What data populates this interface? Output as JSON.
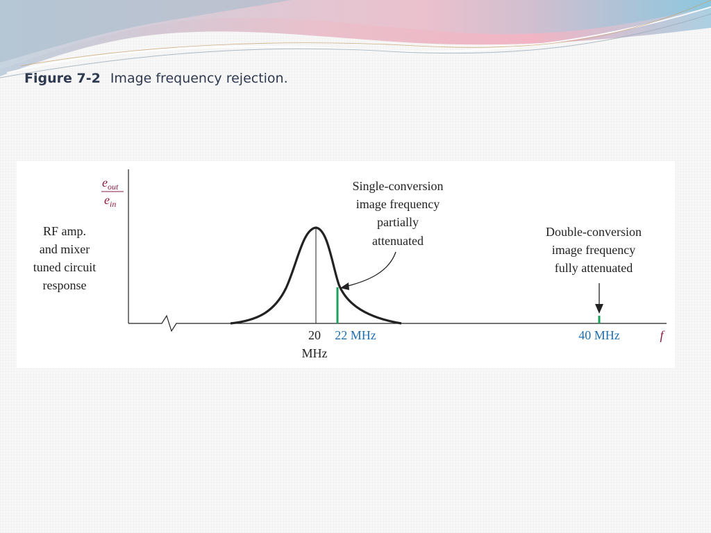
{
  "caption": {
    "number": "Figure 7-2",
    "text": "Image frequency rejection."
  },
  "figure": {
    "y_axis_label": {
      "numerator": "e",
      "numerator_sub": "out",
      "denominator": "e",
      "denominator_sub": "in"
    },
    "curve_label_lines": [
      "RF amp.",
      "and mixer",
      "tuned circuit",
      "response"
    ],
    "single_label_lines": [
      "Single-conversion",
      "image frequency",
      "partially",
      "attenuated"
    ],
    "double_label_lines": [
      "Double-conversion",
      "image frequency",
      "fully attenuated"
    ],
    "tick_20": [
      "20",
      "MHz"
    ],
    "tick_22": "22 MHz",
    "tick_40": "40 MHz",
    "x_axis_label": "f",
    "colors": {
      "marker": "#1aa05a",
      "frequency_label": "#1f6fb0",
      "axis_symbol": "#8a1c3c",
      "curve": "#222222"
    }
  }
}
